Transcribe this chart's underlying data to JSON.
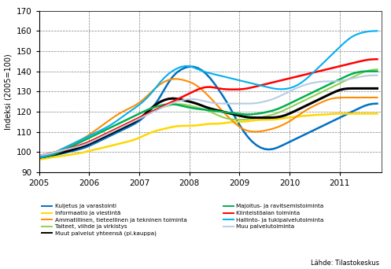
{
  "ylabel": "Indeksi (2005=100)",
  "ylim": [
    90,
    170
  ],
  "yticks": [
    90,
    100,
    110,
    120,
    130,
    140,
    150,
    160,
    170
  ],
  "xlim": [
    2005.0,
    2011.83
  ],
  "xticks": [
    2005,
    2006,
    2007,
    2008,
    2009,
    2010,
    2011
  ],
  "source": "Lähde: Tilastokeskus",
  "series": {
    "Kuljetus ja varastointi": {
      "color": "#0070C0",
      "linewidth": 1.8,
      "data": [
        96.5,
        97,
        97.5,
        98,
        98.5,
        99,
        99.5,
        100,
        100.5,
        101,
        101.5,
        102,
        103,
        104,
        105,
        106,
        107,
        108,
        109,
        110,
        111,
        112,
        113,
        114,
        115,
        117,
        119,
        121,
        124,
        127,
        131,
        135,
        138,
        140,
        141,
        142,
        143,
        142.5,
        142,
        141,
        139,
        137,
        134,
        131,
        128,
        125,
        121,
        117,
        113,
        110,
        107,
        105,
        103,
        102,
        101,
        101,
        101,
        102,
        103,
        104,
        105,
        106,
        107,
        108,
        109,
        110,
        111,
        112,
        113,
        114,
        115,
        116,
        117,
        118,
        119,
        120,
        121,
        122,
        123,
        124,
        124,
        124,
        124
      ]
    },
    "Informaatio ja viestintä": {
      "color": "#FFD700",
      "linewidth": 1.8,
      "data": [
        96,
        96.5,
        97,
        97.5,
        97.5,
        98,
        98,
        98.5,
        99,
        99,
        99.5,
        100,
        100.5,
        101,
        101.5,
        102,
        102.5,
        103,
        103.5,
        104,
        104.5,
        105,
        105.5,
        106,
        107,
        108,
        109,
        110,
        110.5,
        111,
        111.5,
        112,
        112.5,
        113,
        113,
        113,
        113,
        113,
        113,
        113.5,
        114,
        114,
        114,
        114,
        114,
        114.5,
        115,
        115,
        115,
        115,
        115,
        115.5,
        116,
        116,
        116,
        116,
        116,
        116,
        116.5,
        117,
        117,
        117.5,
        117.5,
        118,
        118,
        118,
        118.5,
        118.5,
        118.5,
        118.5,
        119,
        119,
        119,
        119,
        119,
        119,
        119,
        119,
        119,
        119,
        119,
        119,
        119
      ]
    },
    "Ammatillinen, tieteellinen ja tekninen toiminta": {
      "color": "#FF8C00",
      "linewidth": 1.5,
      "data": [
        97,
        97.5,
        98,
        99,
        100,
        101,
        102,
        103,
        104,
        105,
        106,
        107,
        108.5,
        110,
        111.5,
        113,
        114.5,
        116,
        117.5,
        119,
        120,
        121,
        122,
        123,
        124,
        126,
        128,
        130,
        132,
        134,
        135,
        136,
        136.5,
        136.5,
        136,
        135.5,
        135,
        134,
        133,
        131,
        129,
        127,
        125,
        122,
        120,
        118,
        116,
        114,
        112,
        111,
        110,
        110,
        110,
        110,
        110.5,
        111,
        111.5,
        112,
        113,
        114,
        115,
        116.5,
        118,
        119.5,
        121,
        122,
        123,
        124,
        125,
        126,
        126.5,
        127,
        127,
        127,
        127,
        127,
        127,
        127,
        127,
        127,
        127,
        127,
        127
      ]
    },
    "Taiteet, viihde ja virkistys": {
      "color": "#92D050",
      "linewidth": 1.5,
      "data": [
        97.5,
        98,
        98.5,
        99,
        99.5,
        100,
        100.5,
        101,
        101.5,
        102,
        103,
        104,
        105,
        106,
        107,
        108,
        109,
        110,
        111,
        112,
        113,
        114,
        115,
        116,
        117,
        118,
        119,
        120,
        121,
        122,
        122.5,
        123,
        123.5,
        124,
        124,
        123.5,
        123,
        122.5,
        122,
        121.5,
        121,
        120,
        119,
        118,
        117,
        116.5,
        116,
        116,
        116,
        116,
        116,
        116.5,
        117,
        117,
        117.5,
        118,
        118.5,
        119,
        120,
        121,
        122,
        123,
        124,
        125,
        126,
        127,
        128,
        129,
        130,
        131,
        132,
        133,
        134,
        135,
        136,
        137,
        138,
        139,
        140,
        140.5,
        141,
        141,
        141
      ]
    },
    "Muut palvelut yhteensä (pl.kauppa)": {
      "color": "#000000",
      "linewidth": 2.2,
      "data": [
        97,
        97.5,
        98,
        98.5,
        99,
        99.5,
        100,
        100.5,
        101,
        102,
        102.5,
        103,
        104,
        105,
        106,
        107,
        108,
        109,
        110,
        111,
        112,
        113,
        114,
        115,
        116,
        118,
        120,
        122,
        124,
        125,
        126,
        126.5,
        127,
        126.5,
        126,
        125.5,
        125,
        124.5,
        124,
        123,
        122,
        121.5,
        121,
        120.5,
        120,
        119.5,
        119,
        118.5,
        118,
        117.5,
        117,
        117,
        117,
        117,
        117,
        117,
        117,
        117,
        117.5,
        118,
        119,
        120,
        121,
        122,
        123,
        124,
        125,
        126,
        127,
        128,
        129,
        130,
        131,
        131.5,
        131.5,
        131.5,
        131.5,
        131.5,
        131.5,
        131.5,
        131.5,
        131.5,
        131.5
      ]
    },
    "Majoitus- ja ravitsemistoiminta": {
      "color": "#00B050",
      "linewidth": 1.8,
      "data": [
        97,
        97.5,
        98,
        98.5,
        99,
        100,
        101,
        102,
        103,
        104,
        105,
        106,
        107,
        108,
        109,
        110,
        111,
        112,
        113,
        114,
        115,
        116,
        117,
        118,
        119,
        120,
        121,
        122,
        122.5,
        123,
        123.5,
        124,
        124,
        123.5,
        123,
        122.5,
        122,
        121.5,
        121.5,
        121,
        121,
        120.5,
        120.5,
        120,
        120,
        119.5,
        119.5,
        119,
        119,
        118.5,
        118.5,
        118.5,
        119,
        119,
        119.5,
        120,
        120.5,
        121,
        122,
        123,
        124,
        125,
        126,
        127,
        128,
        129,
        130,
        131,
        132,
        133,
        134,
        135,
        136,
        137,
        138,
        139,
        139.5,
        140,
        140,
        140,
        140,
        140,
        140
      ]
    },
    "Kiinteistöalan toiminta": {
      "color": "#FF0000",
      "linewidth": 1.8,
      "data": [
        98,
        98.5,
        99,
        99.5,
        100,
        100.5,
        101,
        101.5,
        102,
        103,
        103.5,
        104,
        105,
        106,
        107,
        108,
        109,
        110,
        111,
        112,
        113,
        114,
        115,
        116,
        117,
        118,
        119,
        120,
        121,
        122,
        123,
        124,
        125,
        126,
        127,
        128,
        129,
        130,
        131,
        132,
        132.5,
        132.5,
        132,
        131.5,
        131,
        131,
        131,
        131,
        131,
        131,
        131.5,
        132,
        132.5,
        133,
        133.5,
        134,
        134.5,
        135,
        135.5,
        136,
        136.5,
        137,
        137.5,
        138,
        138.5,
        139,
        139.5,
        140,
        140.5,
        141,
        141.5,
        142,
        142.5,
        143,
        143.5,
        144,
        144.5,
        145,
        145.5,
        146,
        146,
        146,
        146
      ]
    },
    "Hallinto- ja tukipalvelutoiminta": {
      "color": "#00B0F0",
      "linewidth": 1.5,
      "data": [
        97,
        97.5,
        98,
        99,
        100,
        101,
        102,
        103,
        104,
        105,
        106,
        107,
        108,
        109,
        110,
        111,
        112,
        113,
        114.5,
        116,
        117.5,
        119,
        120.5,
        122,
        123,
        125,
        127,
        129,
        132,
        135,
        137,
        139,
        140.5,
        141.5,
        142.5,
        143,
        143,
        142,
        141,
        140,
        139.5,
        139,
        138.5,
        138,
        137.5,
        137,
        136.5,
        136,
        135.5,
        135,
        134.5,
        134,
        133.5,
        133,
        132.5,
        132,
        131.5,
        131,
        131,
        131,
        131.5,
        132,
        133,
        134.5,
        136,
        138,
        140,
        142,
        144,
        146,
        148,
        150,
        152,
        154,
        156,
        157.5,
        158.5,
        159,
        159.5,
        160,
        160,
        160,
        160
      ]
    },
    "Muu palvelutoiminta": {
      "color": "#B8CCE4",
      "linewidth": 1.5,
      "data": [
        98,
        98.5,
        99,
        99.5,
        100,
        100.5,
        101,
        101.5,
        102,
        102.5,
        103,
        103.5,
        104.5,
        105.5,
        106.5,
        107.5,
        108.5,
        109.5,
        110.5,
        111.5,
        112.5,
        113.5,
        114.5,
        115.5,
        116.5,
        117.5,
        118.5,
        119.5,
        120.5,
        121.5,
        122.5,
        123.5,
        124.5,
        125,
        125.5,
        126,
        126.5,
        126.5,
        126,
        125.5,
        125,
        124.5,
        124,
        124,
        124,
        124,
        124,
        124,
        124,
        124,
        124,
        124,
        124,
        124.5,
        125,
        125.5,
        126,
        127,
        128,
        129,
        130,
        131,
        132,
        133,
        133.5,
        134,
        134.5,
        135,
        135,
        135,
        135,
        135,
        135,
        135.5,
        136,
        136.5,
        137,
        137,
        138,
        138,
        138,
        138,
        138
      ]
    }
  },
  "legend_left": [
    [
      "Kuljetus ja varastointi",
      "#0070C0"
    ],
    [
      "Informaatio ja viestintä",
      "#FFD700"
    ],
    [
      "Ammatillinen, tieteellinen ja tekninen toiminta",
      "#FF8C00"
    ],
    [
      "Taiteet, viihde ja virkistys",
      "#92D050"
    ],
    [
      "Muut palvelut yhteensä (pl.kauppa)",
      "#000000"
    ]
  ],
  "legend_right": [
    [
      "Majoitus- ja ravitsemistoiminta",
      "#00B050"
    ],
    [
      "Kiinteistöalan toiminta",
      "#FF0000"
    ],
    [
      "Hallinto- ja tukipalvelutoiminta",
      "#00B0F0"
    ],
    [
      "Muu palvelutoiminta",
      "#B8CCE4"
    ]
  ]
}
